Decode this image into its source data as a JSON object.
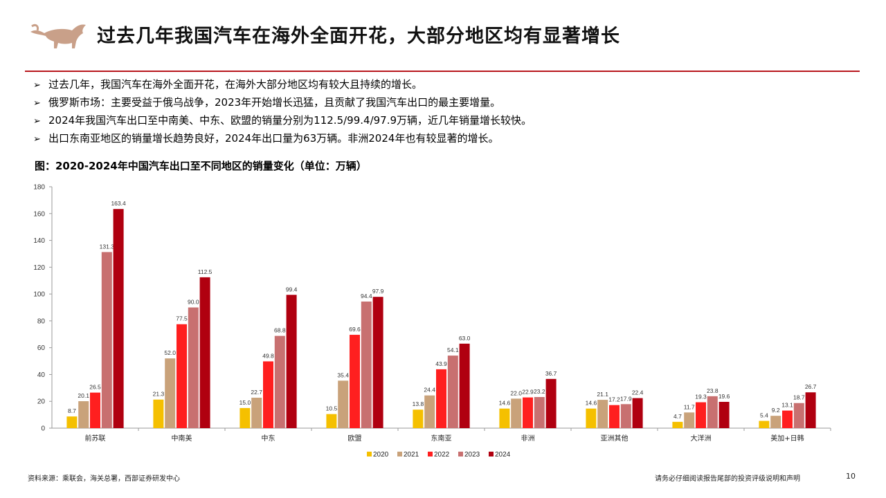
{
  "header": {
    "title": "过去几年我国汽车在海外全面开花，大部分地区均有显著增长",
    "logo_icon": "bull-logo-icon"
  },
  "bullets": [
    "过去几年，我国汽车在海外全面开花，在海外大部分地区均有较大且持续的增长。",
    "俄罗斯市场：主要受益于俄乌战争，2023年开始增长迅猛，且贡献了我国汽车出口的最主要增量。",
    "2024年我国汽车出口至中南美、中东、欧盟的销量分别为112.5/99.4/97.9万辆，近几年销量增长较快。",
    "出口东南亚地区的销量增长趋势良好，2024年出口量为63万辆。非洲2024年也有较显著的增长。"
  ],
  "bullet_marker": "➢",
  "figure_title": "图：2020-2024年中国汽车出口至不同地区的销量变化（单位：万辆）",
  "footer": {
    "source": "资料来源：乘联会，海关总署，西部证券研发中心",
    "disclaimer": "请务必仔细阅读报告尾部的投资评级说明和声明",
    "page": "10"
  },
  "colors": {
    "accent": "#b8161c"
  },
  "chart_data": {
    "type": "bar",
    "title": "图：2020-2024年中国汽车出口至不同地区的销量变化（单位：万辆）",
    "xlabel": "",
    "ylabel": "",
    "ylim": [
      0,
      180
    ],
    "yticks": [
      0,
      20,
      40,
      60,
      80,
      100,
      120,
      140,
      160,
      180
    ],
    "grid": false,
    "legend_position": "bottom",
    "categories": [
      "前苏联",
      "中南美",
      "中东",
      "欧盟",
      "东南亚",
      "非洲",
      "亚洲其他",
      "大洋洲",
      "美加+日韩"
    ],
    "series": [
      {
        "name": "2020",
        "color": "#f5c000",
        "values": [
          8.7,
          21.3,
          15.0,
          10.5,
          13.8,
          14.6,
          14.6,
          4.7,
          5.4
        ],
        "labels": [
          "8.7",
          "21.3",
          "15.0",
          "10.5",
          "13.8",
          "14.6",
          "14.6",
          "4.7",
          "5.4"
        ]
      },
      {
        "name": "2021",
        "color": "#c9a27a",
        "values": [
          20.1,
          52.0,
          22.7,
          35.4,
          24.4,
          22.0,
          21.1,
          11.7,
          9.2
        ],
        "labels": [
          "20.1",
          "52.0",
          "22.7",
          "35.4",
          "24.4",
          "22.0",
          "21.1",
          "11.7",
          "9.2"
        ]
      },
      {
        "name": "2022",
        "color": "#ff1f1f",
        "values": [
          26.5,
          77.5,
          49.8,
          69.6,
          43.9,
          22.9,
          17.2,
          19.3,
          13.1
        ],
        "labels": [
          "26.5",
          "77.5",
          "49.8",
          "69.6",
          "43.9",
          "22.9",
          "17.2",
          "19.3",
          "13.1"
        ]
      },
      {
        "name": "2023",
        "color": "#c87070",
        "values": [
          131.3,
          90.0,
          68.8,
          94.4,
          54.1,
          23.2,
          17.9,
          23.8,
          18.7
        ],
        "labels": [
          "131.3",
          "90.0",
          "68.8",
          "94.4",
          "54.1",
          "23.2",
          "17.9",
          "23.8",
          "18.7"
        ]
      },
      {
        "name": "2024",
        "color": "#b00010",
        "values": [
          163.4,
          112.5,
          99.4,
          97.9,
          63.0,
          36.7,
          22.4,
          19.6,
          26.7
        ],
        "labels": [
          "163.4",
          "112.5",
          "99.4",
          "97.9",
          "63.0",
          "36.7",
          "22.4",
          "19.6",
          "26.7"
        ]
      }
    ]
  }
}
